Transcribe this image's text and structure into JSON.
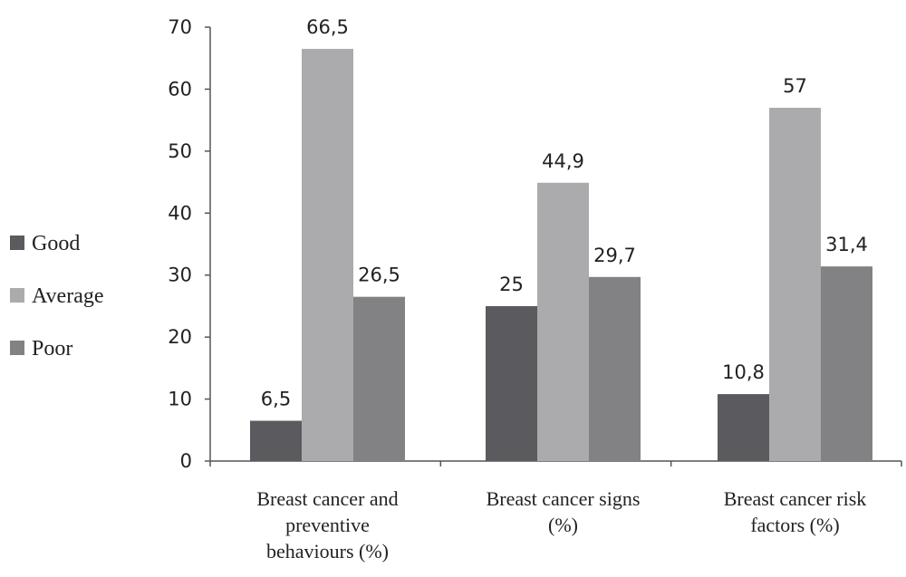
{
  "chart_data": {
    "type": "bar",
    "categories": [
      [
        "Breast cancer and",
        "preventive",
        "behaviours (%)"
      ],
      [
        "Breast cancer signs",
        "(%)"
      ],
      [
        "Breast cancer risk",
        "factors (%)"
      ]
    ],
    "series": [
      {
        "name": "Good",
        "color": "#5b5b5f",
        "values": [
          6.5,
          25,
          10.8
        ],
        "labels": [
          "6,5",
          "25",
          "10,8"
        ]
      },
      {
        "name": "Average",
        "color": "#ababad",
        "values": [
          66.5,
          44.9,
          57
        ],
        "labels": [
          "66,5",
          "44,9",
          "57"
        ]
      },
      {
        "name": "Poor",
        "color": "#828285",
        "values": [
          26.5,
          29.7,
          31.4
        ],
        "labels": [
          "26,5",
          "29,7",
          "31,4"
        ]
      }
    ],
    "ylim": [
      0,
      70
    ],
    "yticks": [
      0,
      10,
      20,
      30,
      40,
      50,
      60,
      70
    ],
    "grid": false,
    "legend_position": "left"
  }
}
